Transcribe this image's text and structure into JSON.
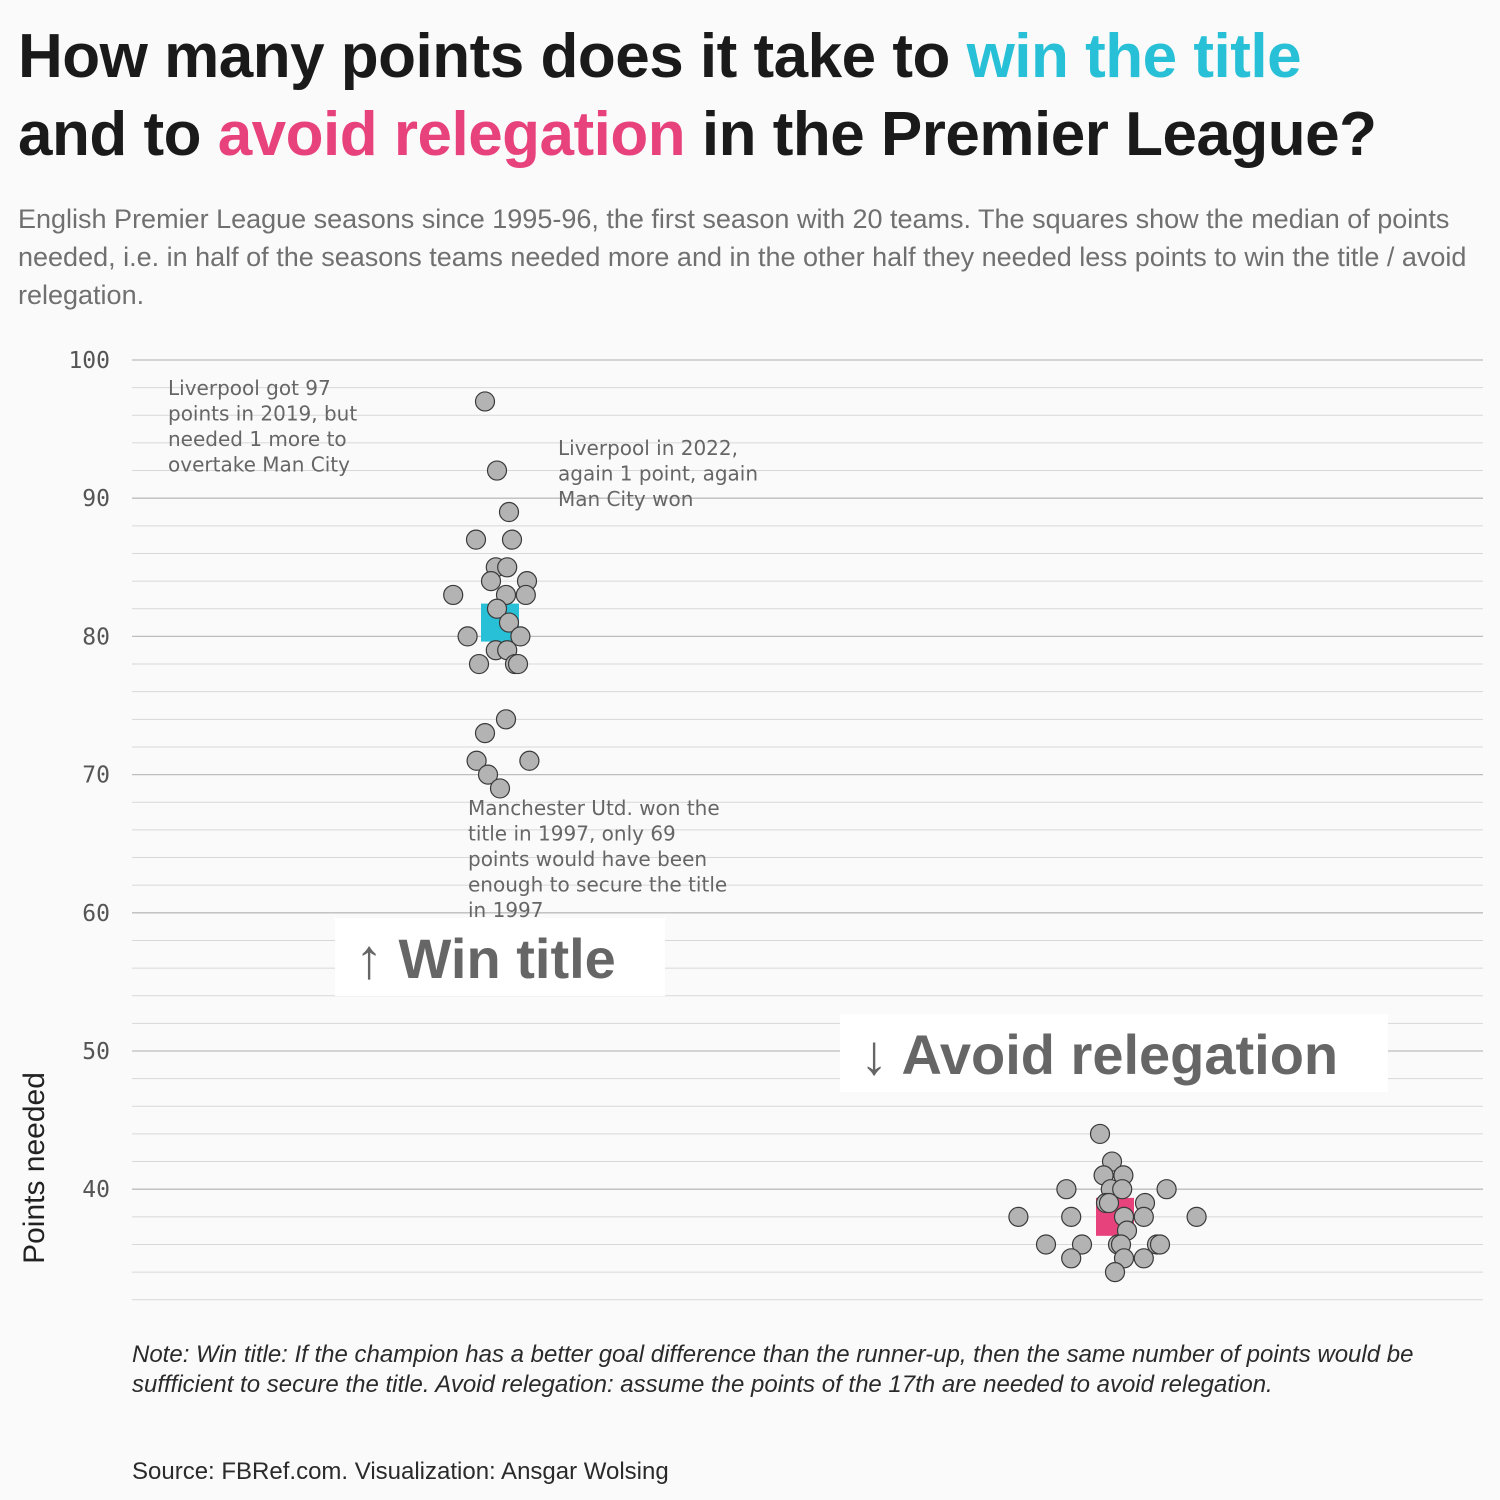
{
  "title": {
    "part1": "How many points does it take to ",
    "win_highlight": "win the title",
    "part2": "and to ",
    "rel_highlight": "avoid relegation",
    "part3": " in the Premier League?"
  },
  "subtitle": "English Premier League seasons since 1995-96, the first season with 20 teams. The squares show the median of points needed, i.e. in half of the seasons teams needed more and in the other half they needed less points to win the title / avoid relegation.",
  "colors": {
    "win": "#27c0d6",
    "relegation": "#e8427c",
    "point_fill": "#b3b3b3",
    "point_stroke": "#3a3a3a"
  },
  "chart_data": {
    "type": "scatter",
    "ylabel": "Points needed",
    "ylim": [
      32,
      100
    ],
    "yticks": [
      40,
      50,
      60,
      70,
      80,
      90,
      100
    ],
    "grid": true,
    "groups": [
      {
        "name": "Win title",
        "label": "↑ Win title",
        "values": [
          97,
          92,
          89,
          87,
          87,
          85,
          85,
          84,
          84,
          83,
          83,
          83,
          82,
          81,
          80,
          80,
          79,
          79,
          78,
          78,
          78,
          74,
          73,
          71,
          71,
          70,
          69
        ],
        "median": 81
      },
      {
        "name": "Avoid relegation",
        "label": "↓ Avoid relegation",
        "values": [
          44,
          42,
          41,
          41,
          40,
          40,
          40,
          40,
          39,
          39,
          39,
          38,
          38,
          38,
          38,
          38,
          37,
          36,
          36,
          36,
          36,
          36,
          36,
          35,
          35,
          35,
          34
        ],
        "median": 38
      }
    ],
    "annotations": [
      "Liverpool got 97 points in 2019, but needed 1 more to overtake Man City",
      "Liverpool in 2022, again 1 point, again Man City won",
      "Manchester Utd. won the title in 1997, only 69 points would have been enough to secure the title in 1997"
    ]
  },
  "note": "Note: Win title: If the champion has a better goal difference than the runner-up, then the same number of points would be suffficient to secure the title. Avoid relegation: assume the points of the 17th are needed to avoid relegation.",
  "source": "Source: FBRef.com. Visualization: Ansgar Wolsing"
}
